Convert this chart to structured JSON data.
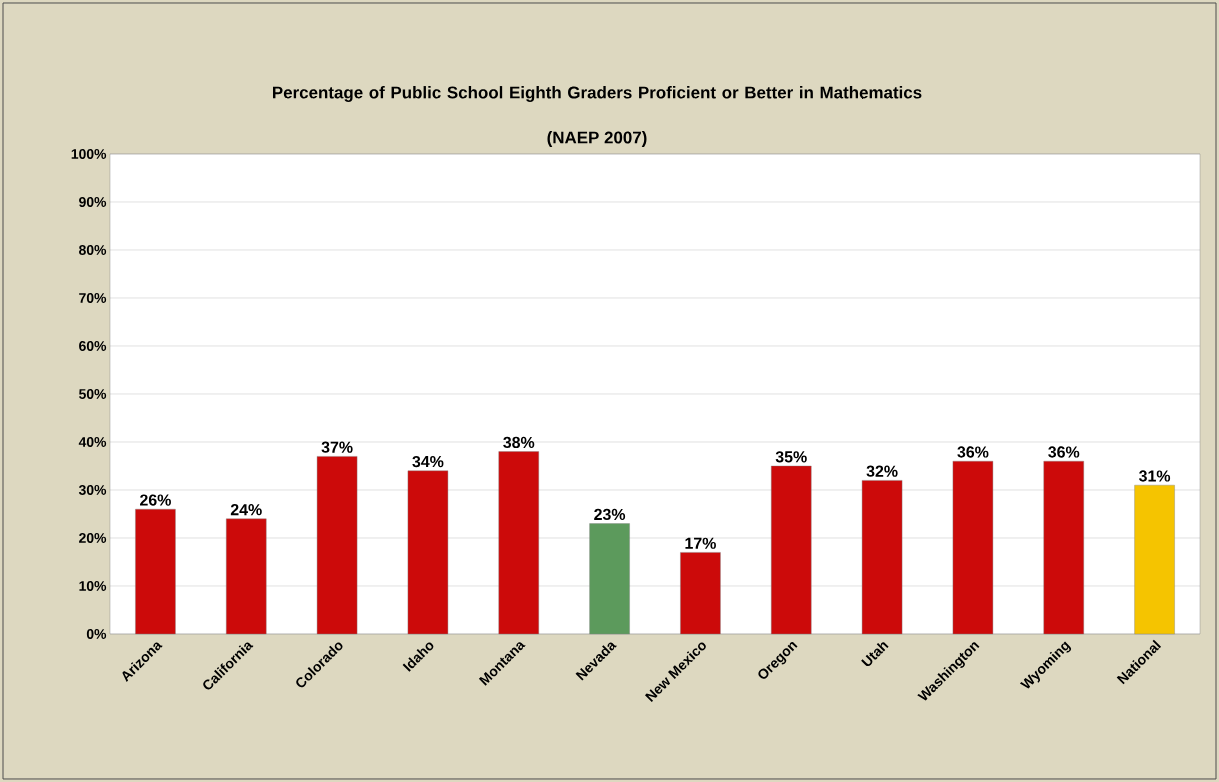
{
  "chart_data": {
    "type": "bar",
    "title": "Percentage of Public School Eighth Graders Proficient or Better in Mathematics",
    "subtitle": "(NAEP 2007)",
    "categories": [
      "Arizona",
      "California",
      "Colorado",
      "Idaho",
      "Montana",
      "Nevada",
      "New Mexico",
      "Oregon",
      "Utah",
      "Washington",
      "Wyoming",
      "National"
    ],
    "values": [
      26,
      24,
      37,
      34,
      38,
      23,
      17,
      35,
      32,
      36,
      36,
      31
    ],
    "value_labels": [
      "26%",
      "24%",
      "37%",
      "34%",
      "38%",
      "23%",
      "17%",
      "35%",
      "32%",
      "36%",
      "36%",
      "31%"
    ],
    "colors": [
      "#cc0a0a",
      "#cc0a0a",
      "#cc0a0a",
      "#cc0a0a",
      "#cc0a0a",
      "#5c9a5c",
      "#cc0a0a",
      "#cc0a0a",
      "#cc0a0a",
      "#cc0a0a",
      "#cc0a0a",
      "#f5c400"
    ],
    "ylim": [
      0,
      100
    ],
    "yticks": [
      {
        "value": 0,
        "label": "0%"
      },
      {
        "value": 10,
        "label": "10%"
      },
      {
        "value": 20,
        "label": "20%"
      },
      {
        "value": 30,
        "label": "30%"
      },
      {
        "value": 40,
        "label": "40%"
      },
      {
        "value": 50,
        "label": "50%"
      },
      {
        "value": 60,
        "label": "60%"
      },
      {
        "value": 70,
        "label": "70%"
      },
      {
        "value": 80,
        "label": "80%"
      },
      {
        "value": 90,
        "label": "90%"
      },
      {
        "value": 100,
        "label": "100%"
      }
    ],
    "grid": "y"
  }
}
